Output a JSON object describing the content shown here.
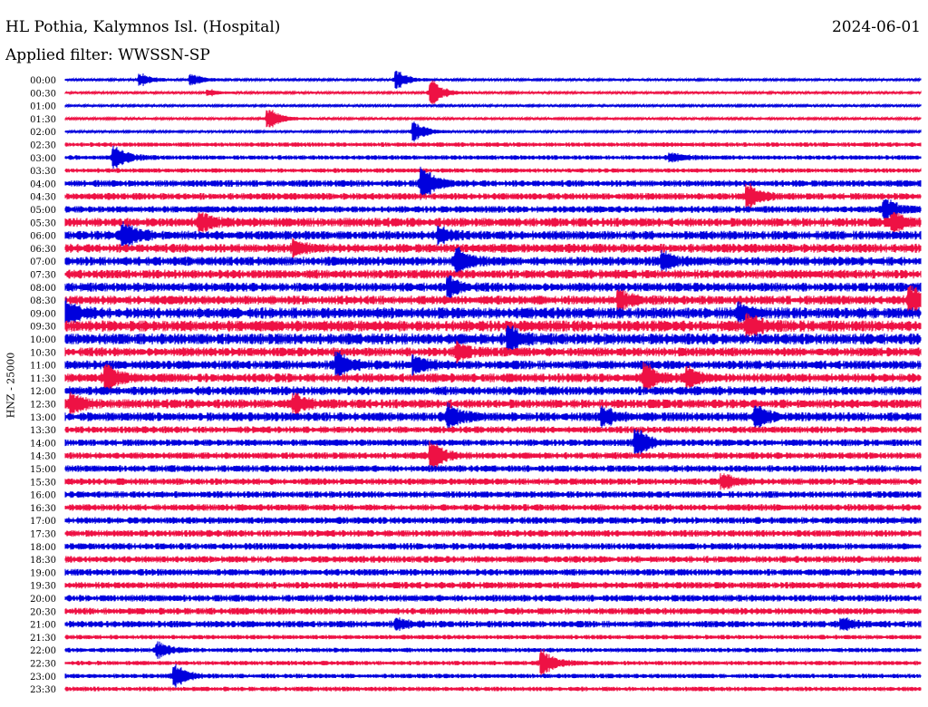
{
  "header": {
    "station": "HL Pothia, Kalymnos Isl. (Hospital)",
    "date": "2024-06-01",
    "filter": "Applied filter: WWSSN-SP"
  },
  "chart_data": {
    "type": "line",
    "title": "HL Pothia, Kalymnos Isl. (Hospital)",
    "ylabel": "HNZ - 25000",
    "row_labels": [
      "00:00",
      "00:30",
      "01:00",
      "01:30",
      "02:00",
      "02:30",
      "03:00",
      "03:30",
      "04:00",
      "04:30",
      "05:00",
      "05:30",
      "06:00",
      "06:30",
      "07:00",
      "07:30",
      "08:00",
      "08:30",
      "09:00",
      "09:30",
      "10:00",
      "10:30",
      "11:00",
      "11:30",
      "12:00",
      "12:30",
      "13:00",
      "13:30",
      "14:00",
      "14:30",
      "15:00",
      "15:30",
      "16:00",
      "16:30",
      "17:00",
      "17:30",
      "18:00",
      "18:30",
      "19:00",
      "19:30",
      "20:00",
      "20:30",
      "21:00",
      "21:30",
      "22:00",
      "22:30",
      "23:00",
      "23:30"
    ],
    "colors": [
      "#0000dd",
      "#ee1144"
    ],
    "noise_level": [
      1,
      1,
      1,
      1,
      1,
      2,
      2,
      2,
      3,
      3,
      3,
      4,
      4,
      4,
      4,
      4,
      4,
      4,
      5,
      5,
      5,
      4,
      4,
      4,
      4,
      4,
      4,
      3,
      3,
      3,
      3,
      3,
      3,
      3,
      3,
      3,
      3,
      3,
      3,
      3,
      3,
      3,
      3,
      2,
      2,
      2,
      2,
      2
    ],
    "events": [
      {
        "row": 0,
        "x": 0.09,
        "amp": 6
      },
      {
        "row": 0,
        "x": 0.15,
        "amp": 5
      },
      {
        "row": 0,
        "x": 0.39,
        "amp": 9
      },
      {
        "row": 1,
        "x": 0.43,
        "amp": 13
      },
      {
        "row": 1,
        "x": 0.17,
        "amp": 3
      },
      {
        "row": 3,
        "x": 0.24,
        "amp": 10
      },
      {
        "row": 4,
        "x": 0.41,
        "amp": 10
      },
      {
        "row": 6,
        "x": 0.06,
        "amp": 12
      },
      {
        "row": 6,
        "x": 0.71,
        "amp": 5
      },
      {
        "row": 8,
        "x": 0.42,
        "amp": 15
      },
      {
        "row": 9,
        "x": 0.8,
        "amp": 12
      },
      {
        "row": 10,
        "x": 0.96,
        "amp": 12
      },
      {
        "row": 11,
        "x": 0.16,
        "amp": 9
      },
      {
        "row": 11,
        "x": 0.97,
        "amp": 8
      },
      {
        "row": 12,
        "x": 0.07,
        "amp": 14
      },
      {
        "row": 12,
        "x": 0.44,
        "amp": 7
      },
      {
        "row": 13,
        "x": 0.27,
        "amp": 7
      },
      {
        "row": 14,
        "x": 0.46,
        "amp": 12
      },
      {
        "row": 14,
        "x": 0.7,
        "amp": 8
      },
      {
        "row": 16,
        "x": 0.45,
        "amp": 8
      },
      {
        "row": 17,
        "x": 0.99,
        "amp": 13
      },
      {
        "row": 17,
        "x": 0.65,
        "amp": 9
      },
      {
        "row": 18,
        "x": 0.0,
        "amp": 12
      },
      {
        "row": 18,
        "x": 0.79,
        "amp": 8
      },
      {
        "row": 19,
        "x": 0.8,
        "amp": 10
      },
      {
        "row": 20,
        "x": 0.52,
        "amp": 12
      },
      {
        "row": 21,
        "x": 0.46,
        "amp": 8
      },
      {
        "row": 22,
        "x": 0.32,
        "amp": 12
      },
      {
        "row": 22,
        "x": 0.41,
        "amp": 8
      },
      {
        "row": 23,
        "x": 0.05,
        "amp": 12
      },
      {
        "row": 23,
        "x": 0.68,
        "amp": 14
      },
      {
        "row": 23,
        "x": 0.73,
        "amp": 10
      },
      {
        "row": 25,
        "x": 0.01,
        "amp": 9
      },
      {
        "row": 25,
        "x": 0.27,
        "amp": 9
      },
      {
        "row": 26,
        "x": 0.45,
        "amp": 13
      },
      {
        "row": 26,
        "x": 0.63,
        "amp": 9
      },
      {
        "row": 26,
        "x": 0.81,
        "amp": 8
      },
      {
        "row": 28,
        "x": 0.67,
        "amp": 13
      },
      {
        "row": 29,
        "x": 0.43,
        "amp": 13
      },
      {
        "row": 31,
        "x": 0.77,
        "amp": 7
      },
      {
        "row": 45,
        "x": 0.56,
        "amp": 13
      },
      {
        "row": 46,
        "x": 0.13,
        "amp": 11
      },
      {
        "row": 42,
        "x": 0.91,
        "amp": 6
      },
      {
        "row": 42,
        "x": 0.39,
        "amp": 5
      },
      {
        "row": 44,
        "x": 0.11,
        "amp": 7
      }
    ]
  }
}
